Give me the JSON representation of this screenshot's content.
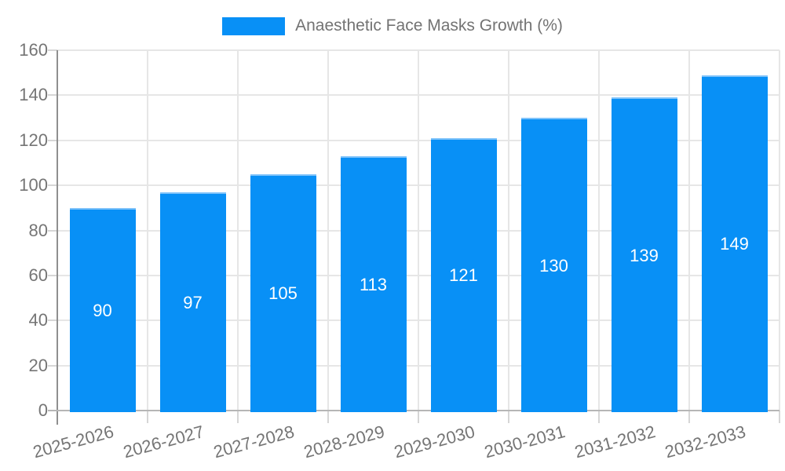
{
  "legend": {
    "label": "Anaesthetic Face Masks Growth (%)"
  },
  "chart_data": {
    "type": "bar",
    "title": "Anaesthetic Face Masks Growth (%)",
    "categories": [
      "2025-2026",
      "2026-2027",
      "2027-2028",
      "2028-2029",
      "2029-2030",
      "2030-2031",
      "2031-2032",
      "2032-2033"
    ],
    "values": [
      90,
      97,
      105,
      113,
      121,
      130,
      139,
      149
    ],
    "xlabel": "",
    "ylabel": "",
    "ylim": [
      0,
      160
    ],
    "yticks": [
      0,
      20,
      40,
      60,
      80,
      100,
      120,
      140,
      160
    ],
    "grid": true,
    "legend_position": "top-center",
    "value_labels": "inside-center",
    "colors": {
      "bar": "#0890f6",
      "bar_top_edge": "#7fc3fa",
      "value_label": "#ffffff",
      "axis_text": "#757575",
      "grid": "#e6e6e6",
      "tick": "#d6d6d6",
      "y_axis_line": "#8f8f8f",
      "x_axis_line": "#b6b6b6"
    }
  }
}
